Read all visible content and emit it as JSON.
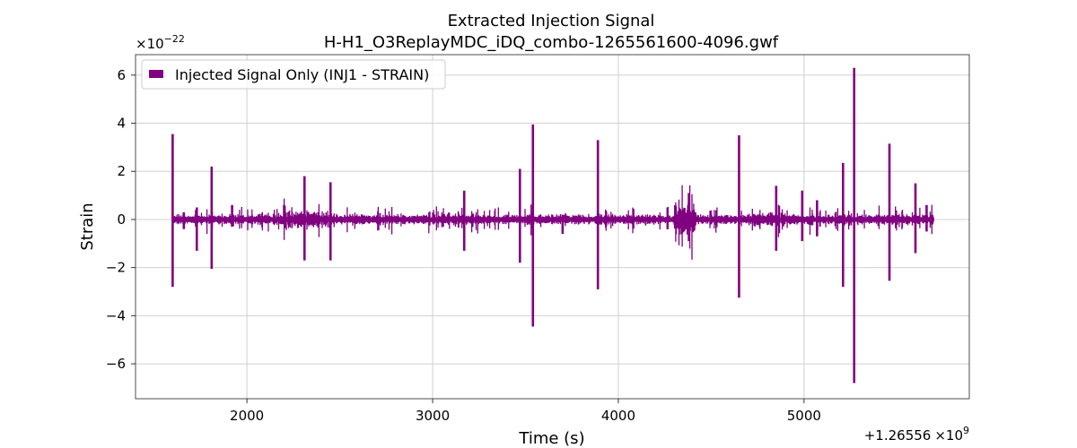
{
  "chart_data": {
    "type": "line",
    "title": "Extracted Injection Signal",
    "subtitle": "H-H1_O3ReplayMDC_iDQ_combo-1265561600-4096.gwf",
    "xlabel": "Time (s)",
    "ylabel": "Strain",
    "x_offset_label": "+1.26556",
    "x_offset_mult": "×10",
    "x_offset_exp": "9",
    "y_scale_label": "×10",
    "y_scale_exp": "−22",
    "xlim": [
      1400,
      5890
    ],
    "ylim": [
      -7.45,
      6.85
    ],
    "x_ticks": [
      2000,
      3000,
      4000,
      5000
    ],
    "x_tick_labels": [
      "2000",
      "3000",
      "4000",
      "5000"
    ],
    "y_ticks": [
      6,
      4,
      2,
      0,
      -2,
      -4,
      -6
    ],
    "y_tick_labels": [
      "6",
      "4",
      "2",
      "0",
      "−2",
      "−4",
      "−6"
    ],
    "grid": true,
    "legend_position": "top-left",
    "series": [
      {
        "name": "Injected Signal Only (INJ1 - STRAIN)",
        "color": "#800080",
        "x_range": [
          1600,
          5700
        ],
        "baseline_amplitude": 0.12,
        "spikes": [
          {
            "x": 1600,
            "y_max": 3.55,
            "y_min": -2.8
          },
          {
            "x": 1660,
            "y_max": 0.3,
            "y_min": -0.4
          },
          {
            "x": 1730,
            "y_max": 0.5,
            "y_min": -1.3
          },
          {
            "x": 1810,
            "y_max": 2.2,
            "y_min": -2.05
          },
          {
            "x": 1920,
            "y_max": 0.6,
            "y_min": -0.3
          },
          {
            "x": 2200,
            "y_max": 0.6,
            "y_min": -0.2
          },
          {
            "x": 2310,
            "y_max": 1.8,
            "y_min": -1.7
          },
          {
            "x": 2450,
            "y_max": 1.55,
            "y_min": -1.7
          },
          {
            "x": 3170,
            "y_max": 1.2,
            "y_min": -1.3
          },
          {
            "x": 3470,
            "y_max": 2.1,
            "y_min": -1.8
          },
          {
            "x": 3540,
            "y_max": 3.95,
            "y_min": -4.45
          },
          {
            "x": 3700,
            "y_max": 0.2,
            "y_min": -0.6
          },
          {
            "x": 3890,
            "y_max": 3.3,
            "y_min": -2.9
          },
          {
            "x": 4380,
            "y_max": 1.1,
            "y_min": -0.9
          },
          {
            "x": 4650,
            "y_max": 3.5,
            "y_min": -3.25
          },
          {
            "x": 4850,
            "y_max": 1.4,
            "y_min": -1.3
          },
          {
            "x": 4990,
            "y_max": 1.2,
            "y_min": -0.9
          },
          {
            "x": 5070,
            "y_max": 0.8,
            "y_min": -0.7
          },
          {
            "x": 5210,
            "y_max": 2.35,
            "y_min": -2.8
          },
          {
            "x": 5270,
            "y_max": 6.3,
            "y_min": -6.8
          },
          {
            "x": 5460,
            "y_max": 3.15,
            "y_min": -2.55
          },
          {
            "x": 5600,
            "y_max": 1.5,
            "y_min": -1.4
          },
          {
            "x": 5660,
            "y_max": 0.6,
            "y_min": -0.5
          }
        ]
      }
    ]
  }
}
